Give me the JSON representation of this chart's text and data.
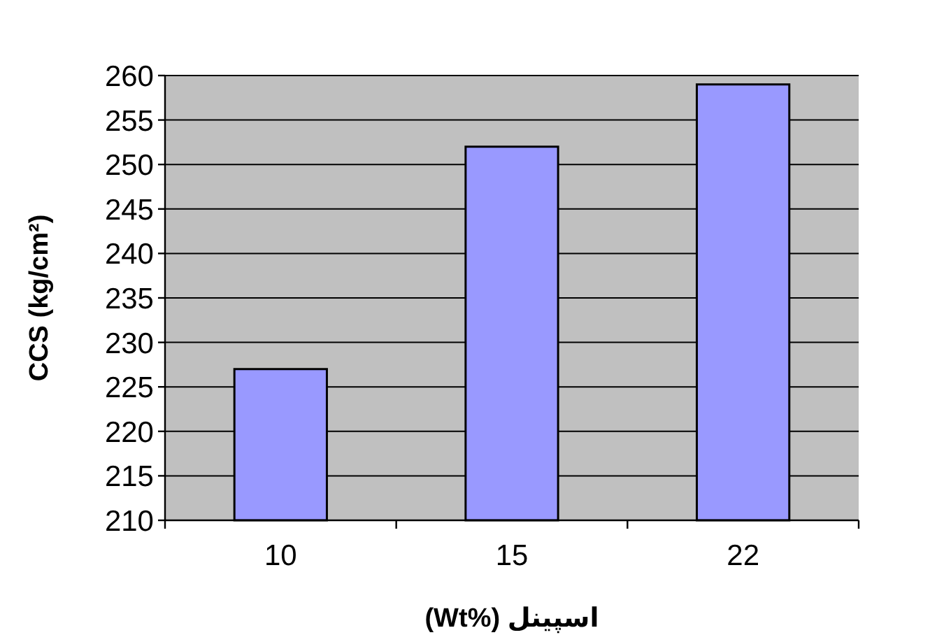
{
  "chart_data": {
    "type": "bar",
    "xlabel": "(Wt%) اسپینل",
    "ylabel": "CCS (kg/cm²)",
    "categories": [
      "10",
      "15",
      "22"
    ],
    "values": [
      227,
      252,
      259
    ],
    "color": "#9999ff",
    "ylim": [
      210,
      260
    ],
    "yticks": [
      210,
      215,
      220,
      225,
      230,
      235,
      240,
      245,
      250,
      255,
      260
    ],
    "grid": "y"
  }
}
